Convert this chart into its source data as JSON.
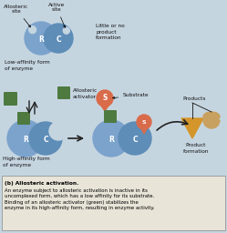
{
  "bg_color": "#c5d5e0",
  "title_text": "(b) Allosteric activation.",
  "caption_bold": "(b) Allosteric activation.",
  "caption_rest": " An enzyme subject to allosteric\nactivation is inactive in its uncomplexed form, which has a\nlow affinity for its substrate.  Binding of an allosteric\nactivator (green) stabilizes the enzyme in its high-affinity\nform, resulting in enzyme activity.",
  "label_low_affinity": "Low-affinity form\nof enzyme",
  "label_high_affinity": "High-affinity form\nof enzyme",
  "label_little": "Little or no\nproduct\nformation",
  "label_allosteric_act": "Allosteric\nactivator",
  "label_substrate": "Substrate",
  "label_products": "Products",
  "label_product_formation": "Product\nformation",
  "label_allosteric_site": "Allosteric\nsite",
  "label_active_site": "Active\nsite",
  "enzyme_blue_r": "#7ba3cc",
  "enzyme_blue_c": "#5e8db8",
  "green_activator": "#4e7a40",
  "orange_substrate": "#d96b4a",
  "orange_product": "#d4952a",
  "orange_product2": "#c8a060",
  "arrow_color": "#222222",
  "text_color": "#111111",
  "caption_bg": "#e8e4d8"
}
